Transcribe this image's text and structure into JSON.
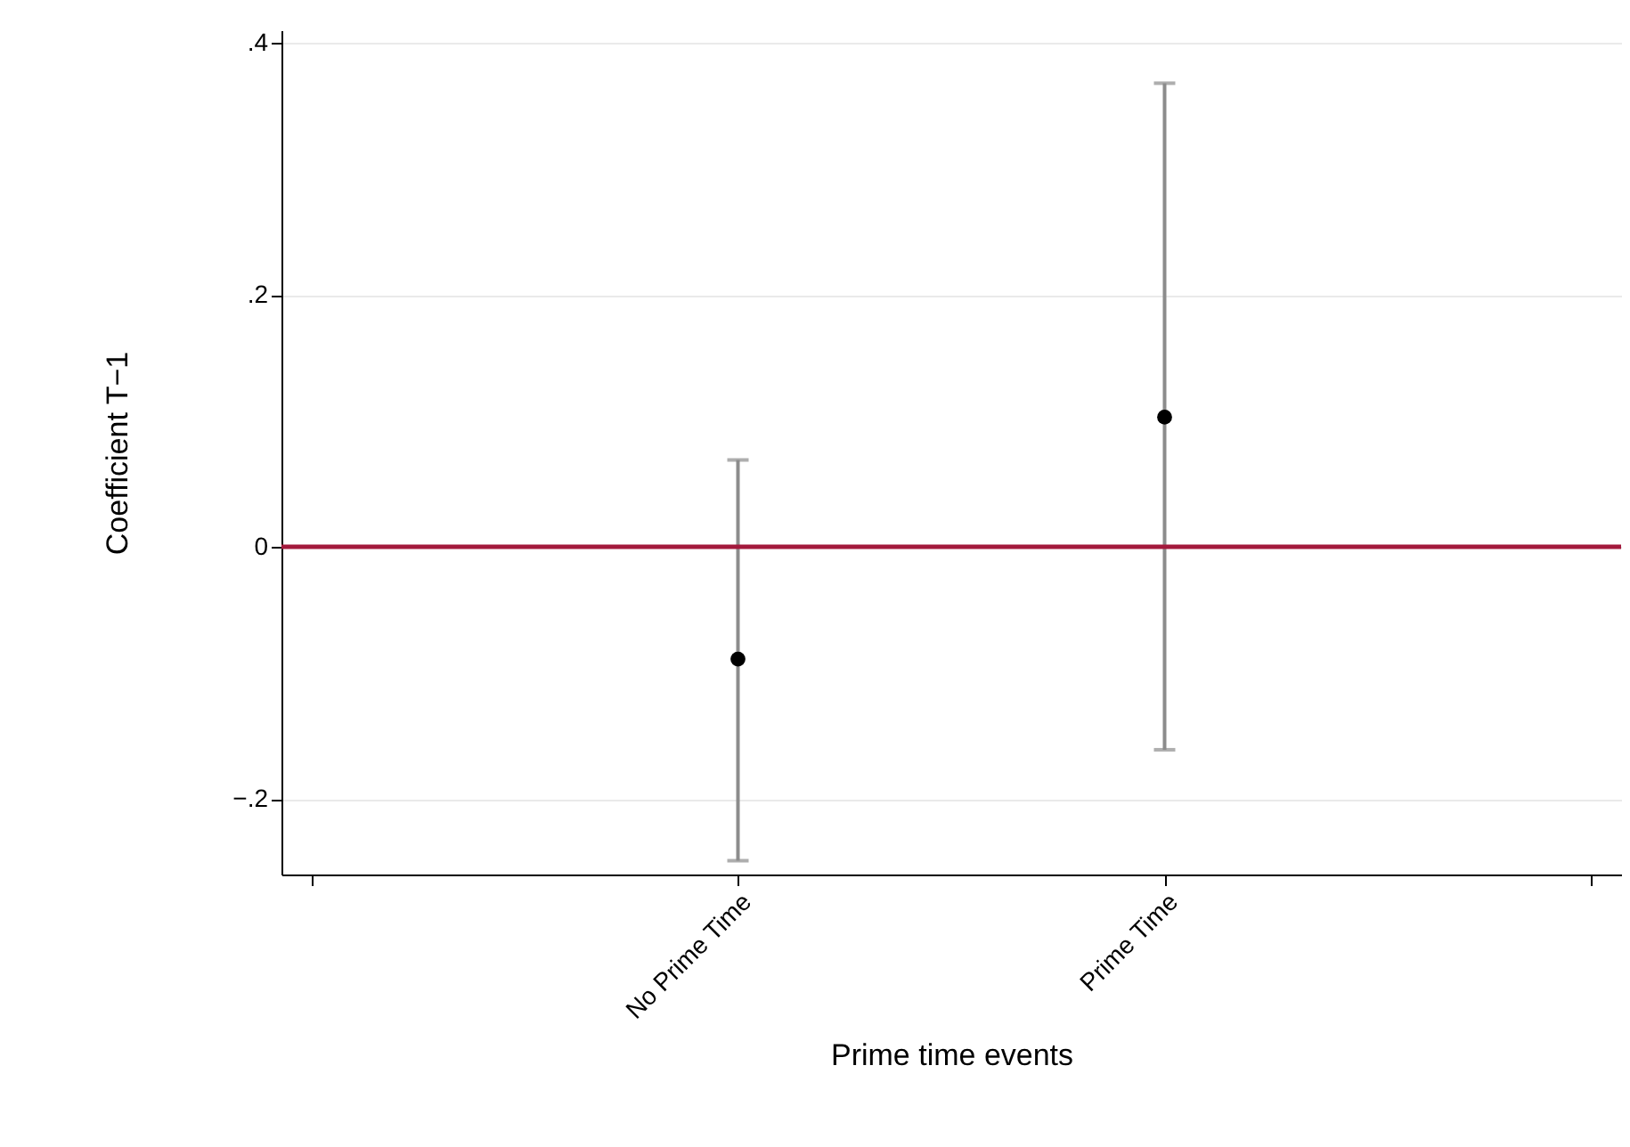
{
  "chart_data": {
    "type": "scatter",
    "xlabel": "Prime time events",
    "ylabel": "Coefficient T−1",
    "categories": [
      "No Prime Time",
      "Prime Time"
    ],
    "series": [
      {
        "color": "#000000",
        "values": [
          -0.089,
          0.103
        ],
        "errors": [
          [
            -0.249,
            0.069
          ],
          [
            -0.161,
            0.368
          ]
        ]
      }
    ],
    "ylim": [
      -0.26,
      0.41
    ],
    "yticks": [
      {
        "value": -0.2,
        "label": "−.2"
      },
      {
        "value": 0,
        "label": "0"
      },
      {
        "value": 0.2,
        "label": ".2"
      },
      {
        "value": 0.4,
        "label": ".4"
      }
    ],
    "ref_lines": [
      {
        "axis": "y",
        "value": 0,
        "color": "#a3193c"
      }
    ],
    "grid": "y",
    "marker": "circle"
  }
}
